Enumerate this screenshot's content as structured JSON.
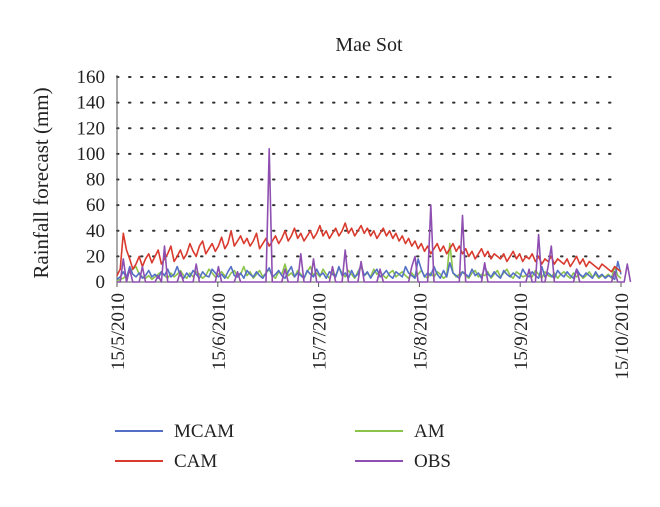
{
  "chart_data": {
    "type": "line",
    "title": "Mae Sot",
    "xlabel": "",
    "ylabel": "Rainfall forecast (mm)",
    "ylim": [
      0,
      160
    ],
    "yticks": [
      "0",
      "20",
      "40",
      "60",
      "80",
      "100",
      "120",
      "140",
      "160"
    ],
    "x_start": "15/5/2010",
    "x_end": "15/10/2010",
    "xticks": [
      "15/5/2010",
      "15/6/2010",
      "15/7/2010",
      "15/8/2010",
      "15/9/2010",
      "15/10/2010"
    ],
    "grid": "dotted horizontal",
    "legend_position": "bottom",
    "series": [
      {
        "name": "MCAM",
        "color": "#5470c6",
        "values": [
          2,
          4,
          8,
          3,
          12,
          6,
          4,
          7,
          3,
          5,
          9,
          4,
          6,
          3,
          8,
          5,
          10,
          4,
          6,
          12,
          5,
          3,
          7,
          4,
          9,
          6,
          3,
          8,
          5,
          4,
          10,
          7,
          4,
          6,
          3,
          8,
          12,
          5,
          4,
          7,
          3,
          9,
          6,
          4,
          8,
          5,
          3,
          7,
          11,
          4,
          6,
          9,
          5,
          3,
          8,
          12,
          4,
          7,
          5,
          3,
          9,
          6,
          4,
          10,
          5,
          7,
          3,
          8,
          6,
          4,
          12,
          5,
          7,
          3,
          9,
          4,
          6,
          14,
          5,
          8,
          3,
          7,
          10,
          4,
          6,
          9,
          5,
          3,
          8,
          6,
          4,
          12,
          7,
          5,
          3,
          18,
          10,
          4,
          7,
          5,
          12,
          6,
          3,
          9,
          4,
          15,
          7,
          5,
          3,
          8,
          6,
          4,
          10,
          5,
          7,
          3,
          12,
          6,
          4,
          8,
          5,
          3,
          9,
          6,
          4,
          7,
          5,
          3,
          10,
          6,
          4,
          8,
          5,
          3,
          12,
          4,
          7,
          5,
          3,
          9,
          6,
          4,
          8,
          5,
          3,
          10,
          6,
          4,
          7,
          5,
          3,
          8,
          4,
          6,
          3,
          5,
          4,
          2,
          16,
          6
        ]
      },
      {
        "name": "CAM",
        "color": "#d83a2e",
        "values": [
          5,
          10,
          38,
          25,
          18,
          10,
          14,
          20,
          12,
          18,
          22,
          15,
          20,
          25,
          14,
          18,
          22,
          28,
          16,
          20,
          25,
          18,
          22,
          30,
          24,
          20,
          28,
          32,
          22,
          26,
          30,
          24,
          28,
          35,
          26,
          30,
          40,
          28,
          32,
          36,
          30,
          34,
          28,
          32,
          38,
          26,
          30,
          34,
          28,
          32,
          36,
          30,
          34,
          40,
          32,
          36,
          42,
          34,
          38,
          32,
          36,
          40,
          34,
          38,
          44,
          36,
          40,
          34,
          38,
          42,
          36,
          40,
          46,
          38,
          42,
          36,
          40,
          44,
          38,
          42,
          36,
          40,
          34,
          38,
          42,
          36,
          40,
          34,
          38,
          32,
          36,
          30,
          34,
          28,
          32,
          26,
          30,
          24,
          28,
          22,
          26,
          30,
          24,
          28,
          22,
          26,
          30,
          24,
          28,
          22,
          26,
          20,
          24,
          18,
          22,
          26,
          20,
          24,
          18,
          22,
          20,
          18,
          22,
          16,
          20,
          24,
          18,
          22,
          16,
          20,
          18,
          22,
          16,
          20,
          14,
          18,
          16,
          20,
          14,
          18,
          16,
          14,
          18,
          12,
          16,
          20,
          14,
          18,
          12,
          16,
          14,
          12,
          10,
          14,
          12,
          10,
          8,
          12,
          10,
          8
        ]
      },
      {
        "name": "AM",
        "color": "#8cc34a",
        "values": [
          1,
          2,
          3,
          5,
          8,
          10,
          12,
          6,
          4,
          3,
          5,
          2,
          4,
          6,
          8,
          5,
          3,
          7,
          4,
          6,
          9,
          5,
          3,
          7,
          4,
          8,
          6,
          3,
          5,
          10,
          7,
          4,
          6,
          8,
          5,
          3,
          7,
          9,
          4,
          6,
          12,
          5,
          8,
          3,
          6,
          9,
          4,
          7,
          10,
          5,
          3,
          8,
          6,
          14,
          5,
          7,
          4,
          9,
          6,
          3,
          8,
          12,
          5,
          7,
          4,
          10,
          6,
          3,
          8,
          5,
          11,
          7,
          4,
          9,
          6,
          3,
          8,
          12,
          5,
          7,
          4,
          10,
          6,
          8,
          5,
          3,
          7,
          9,
          4,
          6,
          8,
          5,
          3,
          7,
          4,
          6,
          9,
          5,
          3,
          7,
          4,
          8,
          6,
          3,
          5,
          30,
          7,
          4,
          6,
          8,
          5,
          3,
          7,
          9,
          4,
          6,
          5,
          8,
          3,
          6,
          9,
          4,
          7,
          10,
          5,
          3,
          8,
          6,
          4,
          5,
          7,
          4,
          9,
          6,
          3,
          8,
          5,
          4,
          7,
          3,
          6,
          8,
          5,
          3,
          7,
          4,
          6,
          3,
          5,
          8,
          4,
          6,
          3,
          5,
          4,
          6,
          3,
          12,
          5,
          3
        ]
      },
      {
        "name": "OBS",
        "color": "#8e4fb0",
        "values": [
          0,
          0,
          18,
          0,
          10,
          0,
          0,
          0,
          12,
          0,
          0,
          0,
          0,
          5,
          0,
          28,
          0,
          0,
          0,
          0,
          8,
          0,
          0,
          0,
          0,
          14,
          0,
          0,
          0,
          0,
          0,
          0,
          12,
          0,
          0,
          0,
          0,
          0,
          8,
          0,
          0,
          0,
          0,
          0,
          0,
          0,
          0,
          0,
          104,
          0,
          0,
          0,
          0,
          10,
          0,
          0,
          0,
          0,
          22,
          0,
          0,
          0,
          18,
          0,
          0,
          0,
          0,
          0,
          12,
          0,
          0,
          0,
          25,
          0,
          0,
          0,
          0,
          16,
          0,
          0,
          0,
          0,
          0,
          10,
          0,
          0,
          0,
          0,
          0,
          0,
          0,
          0,
          0,
          12,
          20,
          0,
          0,
          0,
          0,
          60,
          0,
          0,
          0,
          0,
          0,
          0,
          0,
          0,
          0,
          52,
          0,
          0,
          0,
          0,
          0,
          0,
          15,
          0,
          0,
          0,
          0,
          0,
          0,
          0,
          0,
          0,
          0,
          0,
          0,
          0,
          10,
          0,
          0,
          37,
          0,
          0,
          12,
          28,
          0,
          0,
          0,
          0,
          0,
          0,
          0,
          10,
          0,
          0,
          0,
          0,
          0,
          0,
          0,
          0,
          0,
          0,
          0,
          8,
          0,
          0,
          0,
          14,
          0
        ]
      }
    ]
  }
}
